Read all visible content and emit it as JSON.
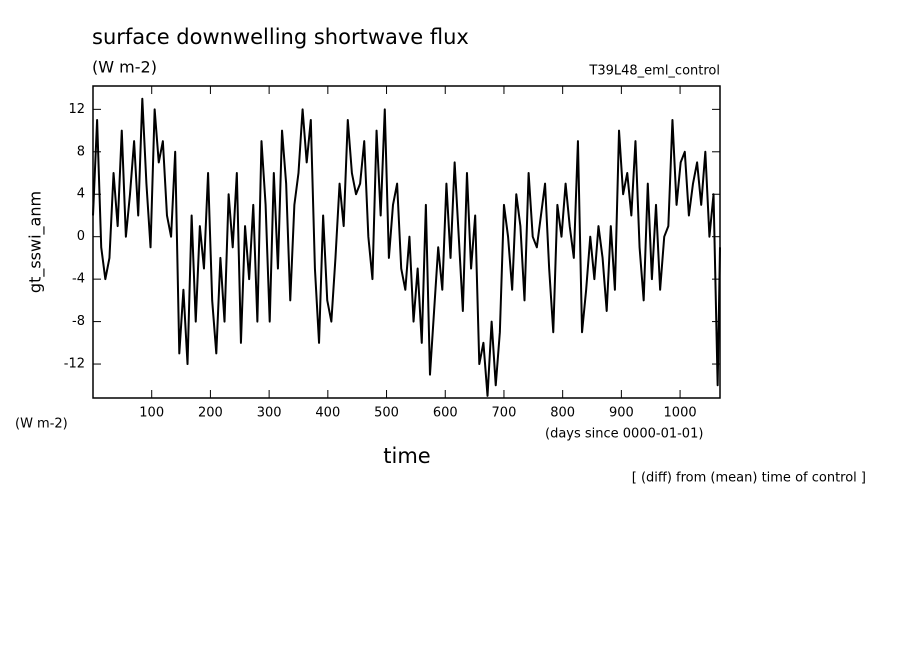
{
  "chart_data": {
    "type": "line",
    "title": "surface downwelling shortwave flux",
    "subtitle": "(W m-2)",
    "run_label": "T39L48_eml_control",
    "y_label": "gt_sswi_anm",
    "y_units": "(W m-2)",
    "x_label": "time",
    "x_units": "(days since 0000-01-01)",
    "note": "[ (diff) from (mean) time of control ]",
    "xlim": [
      0,
      1068
    ],
    "ylim": [
      -15.2,
      14.2
    ],
    "xticks": [
      100,
      200,
      300,
      400,
      500,
      600,
      700,
      800,
      900,
      1000
    ],
    "yticks": [
      -12,
      -8,
      -4,
      0,
      4,
      8,
      12
    ],
    "series": [
      {
        "name": "gt_sswi_anm",
        "color": "#000000",
        "x": [
          0,
          7,
          14,
          21,
          28,
          35,
          42,
          49,
          56,
          63,
          70,
          77,
          84,
          91,
          98,
          105,
          112,
          119,
          126,
          133,
          140,
          147,
          154,
          161,
          168,
          175,
          182,
          189,
          196,
          203,
          210,
          217,
          224,
          231,
          238,
          245,
          252,
          259,
          266,
          273,
          280,
          287,
          294,
          301,
          308,
          315,
          322,
          329,
          336,
          343,
          350,
          357,
          364,
          371,
          378,
          385,
          392,
          399,
          406,
          413,
          420,
          427,
          434,
          441,
          448,
          455,
          462,
          469,
          476,
          483,
          490,
          497,
          504,
          511,
          518,
          525,
          532,
          539,
          546,
          553,
          560,
          567,
          574,
          581,
          588,
          595,
          602,
          609,
          616,
          623,
          630,
          637,
          644,
          651,
          658,
          665,
          672,
          679,
          686,
          693,
          700,
          707,
          714,
          721,
          728,
          735,
          742,
          749,
          756,
          763,
          770,
          777,
          784,
          791,
          798,
          805,
          812,
          819,
          826,
          833,
          840,
          847,
          854,
          861,
          868,
          875,
          882,
          889,
          896,
          903,
          910,
          917,
          924,
          931,
          938,
          945,
          952,
          959,
          966,
          973,
          980,
          987,
          994,
          1001,
          1008,
          1015,
          1022,
          1029,
          1036,
          1043,
          1050,
          1057,
          1064,
          1068
        ],
        "values": [
          2,
          11,
          -1,
          -4,
          -2,
          6,
          1,
          10,
          0,
          4,
          9,
          2,
          13,
          5,
          -1,
          12,
          7,
          9,
          2,
          0,
          8,
          -11,
          -5,
          -12,
          2,
          -8,
          1,
          -3,
          6,
          -6,
          -11,
          -2,
          -8,
          4,
          -1,
          6,
          -10,
          1,
          -4,
          3,
          -8,
          9,
          3,
          -8,
          6,
          -3,
          10,
          5,
          -6,
          3,
          6,
          12,
          7,
          11,
          -3,
          -10,
          2,
          -6,
          -8,
          -2,
          5,
          1,
          11,
          6,
          4,
          5,
          9,
          0,
          -4,
          10,
          2,
          12,
          -2,
          3,
          5,
          -3,
          -5,
          0,
          -8,
          -3,
          -10,
          3,
          -13,
          -7,
          -1,
          -5,
          5,
          -2,
          7,
          0,
          -7,
          6,
          -3,
          2,
          -12,
          -10,
          -15,
          -8,
          -14,
          -9,
          3,
          0,
          -5,
          4,
          1,
          -6,
          6,
          0,
          -1,
          2,
          5,
          -3,
          -9,
          3,
          0,
          5,
          1,
          -2,
          9,
          -9,
          -5,
          0,
          -4,
          1,
          -2,
          -7,
          1,
          -5,
          10,
          4,
          6,
          2,
          9,
          -1,
          -6,
          5,
          -4,
          3,
          -5,
          0,
          1,
          11,
          3,
          7,
          8,
          2,
          5,
          7,
          3,
          8,
          0,
          4,
          -14,
          -1
        ]
      }
    ]
  }
}
